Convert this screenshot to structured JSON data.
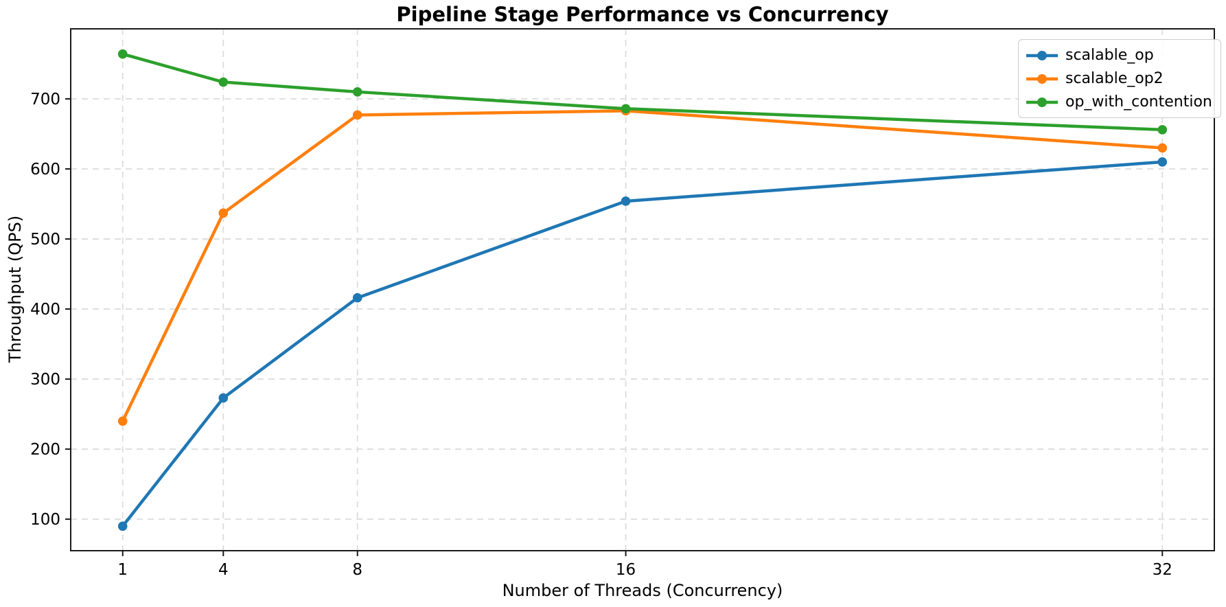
{
  "title": "Pipeline Stage Performance vs Concurrency",
  "chart_data": {
    "type": "line",
    "title": "Pipeline Stage Performance vs Concurrency",
    "xlabel": "Number of Threads (Concurrency)",
    "ylabel": "Throughput (QPS)",
    "x": [
      1,
      4,
      8,
      16,
      32
    ],
    "xticks": [
      1,
      4,
      8,
      16,
      32
    ],
    "yticks": [
      100,
      200,
      300,
      400,
      500,
      600,
      700
    ],
    "xlim": [
      -0.55,
      33.55
    ],
    "ylim": [
      55,
      800
    ],
    "grid": true,
    "grid_style": "dashed",
    "legend_position": "upper right",
    "series": [
      {
        "name": "scalable_op",
        "color": "#1f77b4",
        "values": [
          90,
          273,
          416,
          554,
          610
        ]
      },
      {
        "name": "scalable_op2",
        "color": "#ff7f0e",
        "values": [
          240,
          537,
          677,
          683,
          630
        ]
      },
      {
        "name": "op_with_contention",
        "color": "#2ca02c",
        "values": [
          764,
          724,
          710,
          686,
          656
        ]
      }
    ],
    "colors": {
      "spine": "#1a1a1a",
      "grid": "#dcdcdc",
      "legend_border": "#cccccc",
      "text": "#000000"
    }
  }
}
